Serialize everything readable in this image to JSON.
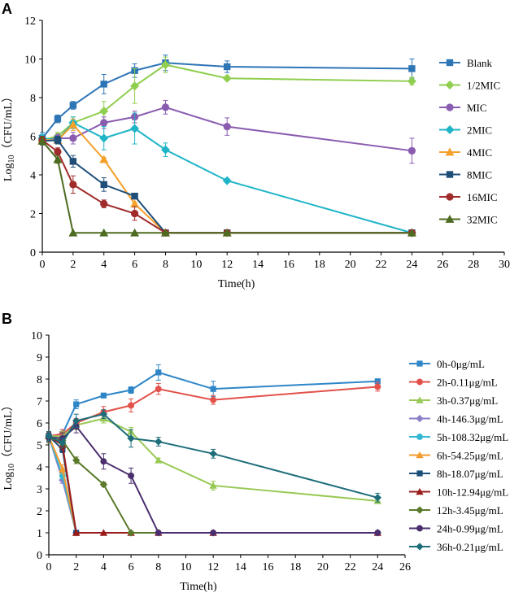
{
  "figure": {
    "panel_a_label": "A",
    "panel_b_label": "B"
  },
  "chart_data": [
    {
      "type": "line",
      "panel": "A",
      "title": "",
      "xlabel": "Time(h)",
      "ylabel_main": "Log",
      "ylabel_sub": "10",
      "ylabel_rest": "（CFU/mL）",
      "xlim": [
        0,
        30
      ],
      "ylim": [
        0,
        12
      ],
      "xticks": [
        0,
        2,
        4,
        6,
        8,
        10,
        12,
        14,
        16,
        18,
        20,
        22,
        24,
        26,
        28,
        30
      ],
      "yticks": [
        0,
        2,
        4,
        6,
        8,
        10,
        12
      ],
      "legend_position": "right",
      "series": [
        {
          "name": "Blank",
          "color": "#2e75b6",
          "marker": "square",
          "x": [
            0,
            1,
            2,
            4,
            6,
            8,
            12,
            24
          ],
          "y": [
            5.9,
            6.9,
            7.6,
            8.7,
            9.4,
            9.8,
            9.6,
            9.5
          ],
          "err": [
            0.3,
            0.2,
            0.2,
            0.5,
            0.35,
            0.4,
            0.3,
            0.5
          ]
        },
        {
          "name": "1/2MIC",
          "color": "#8fce4e",
          "marker": "diamond",
          "x": [
            0,
            1,
            2,
            4,
            6,
            8,
            12,
            24
          ],
          "y": [
            5.8,
            6.0,
            6.7,
            7.3,
            8.6,
            9.7,
            9.0,
            8.85
          ],
          "err": [
            0.2,
            0.2,
            0.3,
            0.5,
            0.9,
            0.4,
            0.1,
            0.2
          ]
        },
        {
          "name": "MIC",
          "color": "#8a5cb0",
          "marker": "circle",
          "x": [
            0,
            1,
            2,
            4,
            6,
            8,
            12,
            24
          ],
          "y": [
            5.8,
            5.9,
            5.9,
            6.7,
            7.0,
            7.5,
            6.5,
            5.25
          ],
          "err": [
            0.2,
            0.2,
            0.3,
            0.3,
            0.3,
            0.35,
            0.45,
            0.65
          ]
        },
        {
          "name": "2MIC",
          "color": "#1fb5c7",
          "marker": "diamond",
          "x": [
            0,
            1,
            2,
            4,
            6,
            8,
            12,
            24
          ],
          "y": [
            5.9,
            5.8,
            6.7,
            5.9,
            6.4,
            5.3,
            3.7,
            1.0
          ],
          "err": [
            0.2,
            0.2,
            0.3,
            0.6,
            0.8,
            0.35,
            0.1,
            0.05
          ]
        },
        {
          "name": "4MIC",
          "color": "#f5a02a",
          "marker": "triangle",
          "x": [
            0,
            1,
            2,
            4,
            6,
            8,
            12,
            24
          ],
          "y": [
            5.8,
            5.8,
            6.6,
            4.8,
            2.5,
            1.0,
            1.0,
            1.0
          ],
          "err": [
            0.2,
            0.2,
            0.3,
            0.1,
            0.1,
            0.05,
            0.05,
            0.05
          ]
        },
        {
          "name": "8MIC",
          "color": "#1f4e79",
          "marker": "square",
          "x": [
            0,
            1,
            2,
            4,
            6,
            8,
            12,
            24
          ],
          "y": [
            5.75,
            5.8,
            4.7,
            3.5,
            2.9,
            1.0,
            1.0,
            1.0
          ],
          "err": [
            0.2,
            0.2,
            0.3,
            0.35,
            0.1,
            0.05,
            0.05,
            0.05
          ]
        },
        {
          "name": "16MIC",
          "color": "#a02b2b",
          "marker": "circle",
          "x": [
            0,
            1,
            2,
            4,
            6,
            8,
            12,
            24
          ],
          "y": [
            5.8,
            5.2,
            3.5,
            2.5,
            2.0,
            1.0,
            1.0,
            1.0
          ],
          "err": [
            0.2,
            0.2,
            0.45,
            0.2,
            0.35,
            0.05,
            0.05,
            0.05
          ]
        },
        {
          "name": "32MIC",
          "color": "#4e6b22",
          "marker": "triangle",
          "x": [
            0,
            1,
            2,
            4,
            6,
            8,
            12,
            24
          ],
          "y": [
            5.75,
            4.8,
            1.0,
            1.0,
            1.0,
            1.0,
            1.0,
            1.0
          ],
          "err": [
            0.2,
            0.2,
            0.05,
            0.05,
            0.05,
            0.05,
            0.05,
            0.05
          ]
        }
      ]
    },
    {
      "type": "line",
      "panel": "B",
      "title": "",
      "xlabel": "Time(h)",
      "ylabel_main": "Log",
      "ylabel_sub": "10",
      "ylabel_rest": "（CFU/mL）",
      "xlim": [
        0,
        26
      ],
      "ylim": [
        0,
        10
      ],
      "xticks": [
        0,
        2,
        4,
        6,
        8,
        10,
        12,
        14,
        16,
        18,
        20,
        22,
        24,
        26
      ],
      "yticks": [
        0,
        1,
        2,
        3,
        4,
        5,
        6,
        7,
        8,
        9,
        10
      ],
      "legend_position": "right",
      "series": [
        {
          "name": "0h-0μg/mL",
          "color": "#2e86c8",
          "marker": "square",
          "x": [
            0,
            1,
            2,
            4,
            6,
            8,
            12,
            24
          ],
          "y": [
            5.4,
            5.5,
            6.85,
            7.25,
            7.5,
            8.3,
            7.55,
            7.9
          ],
          "err": [
            0.2,
            0.2,
            0.2,
            0.1,
            0.15,
            0.35,
            0.35,
            0.1
          ]
        },
        {
          "name": "2h-0.11μg/mL",
          "color": "#e2514a",
          "marker": "circle",
          "x": [
            0,
            1,
            2,
            4,
            6,
            8,
            12,
            24
          ],
          "y": [
            5.4,
            5.5,
            6.0,
            6.5,
            6.8,
            7.55,
            7.05,
            7.65
          ],
          "err": [
            0.2,
            0.2,
            0.2,
            0.25,
            0.3,
            0.25,
            0.2,
            0.2
          ]
        },
        {
          "name": "3h-0.37μg/mL",
          "color": "#98c955",
          "marker": "triangle",
          "x": [
            0,
            1,
            2,
            4,
            6,
            8,
            12,
            24
          ],
          "y": [
            5.4,
            5.4,
            5.9,
            6.2,
            5.6,
            4.3,
            3.15,
            2.45
          ],
          "err": [
            0.2,
            0.2,
            0.2,
            0.2,
            0.2,
            0.1,
            0.2,
            0.1
          ]
        },
        {
          "name": "4h-146.3μg/mL",
          "color": "#8c7fc8",
          "marker": "diamond",
          "x": [
            0,
            1,
            2
          ],
          "y": [
            5.4,
            3.4,
            1.0
          ],
          "err": [
            0.2,
            0.15,
            0.05
          ]
        },
        {
          "name": "5h-108.32μg/mL",
          "color": "#33b8d4",
          "marker": "circle",
          "x": [
            0,
            1,
            2
          ],
          "y": [
            5.4,
            3.6,
            1.0
          ],
          "err": [
            0.2,
            0.15,
            0.05
          ]
        },
        {
          "name": "6h-54.25μg/mL",
          "color": "#f39c2e",
          "marker": "triangle",
          "x": [
            0,
            1,
            2
          ],
          "y": [
            5.4,
            3.9,
            1.0
          ],
          "err": [
            0.2,
            0.2,
            0.05
          ]
        },
        {
          "name": "8h-18.07μg/mL",
          "color": "#1a4f7a",
          "marker": "square",
          "x": [
            0,
            1,
            2
          ],
          "y": [
            5.4,
            4.8,
            1.0
          ],
          "err": [
            0.2,
            0.15,
            0.05
          ]
        },
        {
          "name": "10h-12.94μg/mL",
          "color": "#9b1c1c",
          "marker": "triangle",
          "x": [
            0,
            1,
            2,
            4,
            6,
            8,
            12,
            24
          ],
          "y": [
            5.4,
            5.0,
            1.0,
            1.0,
            1.0,
            1.0,
            1.0,
            1.0
          ],
          "err": [
            0.2,
            0.2,
            0.05,
            0.05,
            0.05,
            0.05,
            0.05,
            0.05
          ]
        },
        {
          "name": "12h-3.45μg/mL",
          "color": "#5a7a2a",
          "marker": "diamond",
          "x": [
            0,
            1,
            2,
            4,
            6,
            8,
            12,
            24
          ],
          "y": [
            5.3,
            5.2,
            4.3,
            3.2,
            1.0,
            1.0,
            1.0,
            1.0
          ],
          "err": [
            0.2,
            0.2,
            0.15,
            0.1,
            0.05,
            0.05,
            0.05,
            0.05
          ]
        },
        {
          "name": "24h-0.99μg/mL",
          "color": "#4a2e6e",
          "marker": "circle",
          "x": [
            0,
            1,
            2,
            4,
            6,
            8,
            12,
            24
          ],
          "y": [
            5.35,
            5.3,
            5.85,
            4.25,
            3.6,
            1.0,
            1.0,
            1.0
          ],
          "err": [
            0.2,
            0.25,
            0.3,
            0.35,
            0.35,
            0.05,
            0.05,
            0.05
          ]
        },
        {
          "name": "36h-0.21μg/mL",
          "color": "#1e6e7a",
          "marker": "diamond",
          "x": [
            0,
            1,
            2,
            4,
            6,
            8,
            12,
            24
          ],
          "y": [
            5.4,
            5.1,
            6.1,
            6.4,
            5.3,
            5.15,
            4.6,
            2.6
          ],
          "err": [
            0.2,
            0.2,
            0.3,
            0.2,
            0.4,
            0.2,
            0.2,
            0.2
          ]
        }
      ]
    }
  ]
}
